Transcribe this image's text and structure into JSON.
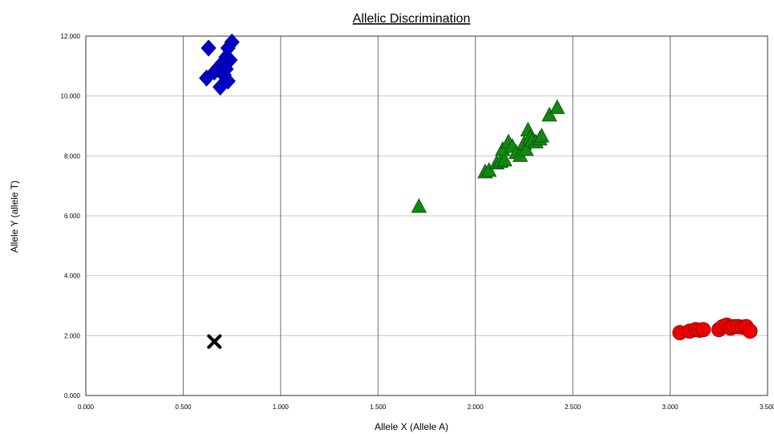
{
  "chart_data": {
    "type": "scatter",
    "title": "Allelic Discrimination",
    "xlabel": "Allele X (Allele A)",
    "ylabel": "Allele Y (allele T)",
    "xlim": [
      0,
      3.5
    ],
    "ylim": [
      0,
      12
    ],
    "xticks": [
      "0.000",
      "0.500",
      "1.000",
      "1.500",
      "2.000",
      "2.500",
      "3.000",
      "3.500"
    ],
    "yticks": [
      "0.000",
      "2.000",
      "4.000",
      "6.000",
      "8.000",
      "10.000",
      "12.000"
    ],
    "grid": true,
    "series": [
      {
        "marker": "diamond",
        "color": "#0000cc",
        "points": [
          [
            0.63,
            11.6
          ],
          [
            0.75,
            11.8
          ],
          [
            0.73,
            11.6
          ],
          [
            0.72,
            11.3
          ],
          [
            0.74,
            11.2
          ],
          [
            0.7,
            11.1
          ],
          [
            0.68,
            10.95
          ],
          [
            0.72,
            10.9
          ],
          [
            0.66,
            10.8
          ],
          [
            0.7,
            10.75
          ],
          [
            0.71,
            10.7
          ],
          [
            0.62,
            10.6
          ],
          [
            0.73,
            10.5
          ],
          [
            0.69,
            10.3
          ]
        ]
      },
      {
        "marker": "triangle",
        "color": "#118811",
        "points": [
          [
            1.71,
            6.3
          ],
          [
            2.05,
            7.45
          ],
          [
            2.07,
            7.5
          ],
          [
            2.11,
            7.75
          ],
          [
            2.13,
            7.8
          ],
          [
            2.15,
            7.85
          ],
          [
            2.14,
            8.2
          ],
          [
            2.17,
            8.45
          ],
          [
            2.19,
            8.3
          ],
          [
            2.21,
            8.1
          ],
          [
            2.23,
            8.0
          ],
          [
            2.25,
            8.4
          ],
          [
            2.26,
            8.2
          ],
          [
            2.27,
            8.85
          ],
          [
            2.28,
            8.6
          ],
          [
            2.29,
            8.5
          ],
          [
            2.31,
            8.45
          ],
          [
            2.33,
            8.55
          ],
          [
            2.34,
            8.65
          ],
          [
            2.38,
            9.35
          ],
          [
            2.42,
            9.6
          ]
        ]
      },
      {
        "marker": "circle",
        "color": "#ee0000",
        "points": [
          [
            3.05,
            2.1
          ],
          [
            3.1,
            2.15
          ],
          [
            3.13,
            2.2
          ],
          [
            3.15,
            2.18
          ],
          [
            3.17,
            2.2
          ],
          [
            3.25,
            2.2
          ],
          [
            3.27,
            2.3
          ],
          [
            3.29,
            2.35
          ],
          [
            3.31,
            2.25
          ],
          [
            3.33,
            2.3
          ],
          [
            3.35,
            2.3
          ],
          [
            3.37,
            2.28
          ],
          [
            3.39,
            2.3
          ],
          [
            3.41,
            2.15
          ]
        ]
      },
      {
        "marker": "x",
        "color": "#000000",
        "points": [
          [
            0.66,
            1.8
          ]
        ]
      }
    ]
  }
}
